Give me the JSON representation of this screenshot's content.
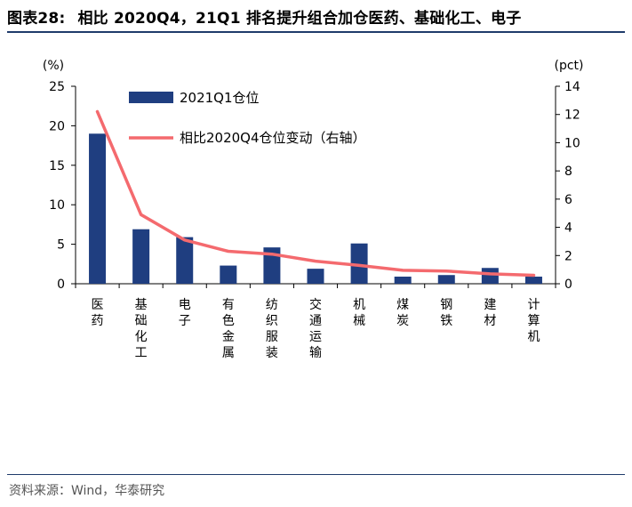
{
  "title": {
    "number": "图表28:",
    "text": "相比 2020Q4，21Q1 排名提升组合加仓医药、基础化工、电子"
  },
  "source": "资料来源：Wind，华泰研究",
  "colors": {
    "bar": "#1f3e80",
    "line": "#f46a6e",
    "rule": "#1f3b6b"
  },
  "chart_data": {
    "type": "bar",
    "categories": [
      "医药",
      "基础化工",
      "电子",
      "有色金属",
      "纺织服装",
      "交通运输",
      "机械",
      "煤炭",
      "钢铁",
      "建材",
      "计算机"
    ],
    "series": [
      {
        "name": "2021Q1仓位",
        "type": "bar",
        "axis": "left",
        "values": [
          19.0,
          6.9,
          5.9,
          2.3,
          4.6,
          1.9,
          5.1,
          0.9,
          1.1,
          2.0,
          0.9
        ]
      },
      {
        "name": "相比2020Q4仓位变动（右轴）",
        "type": "line",
        "axis": "right",
        "values": [
          12.2,
          4.9,
          3.1,
          2.3,
          2.1,
          1.6,
          1.3,
          0.95,
          0.9,
          0.7,
          0.6
        ]
      }
    ],
    "y_left": {
      "unit": "(%)",
      "min": 0,
      "max": 25,
      "ticks": [
        0,
        5,
        10,
        15,
        20,
        25
      ]
    },
    "y_right": {
      "unit": "(pct)",
      "min": 0,
      "max": 14,
      "ticks": [
        0,
        2,
        4,
        6,
        8,
        10,
        12,
        14
      ]
    },
    "legend_position": "top-left",
    "grid": false
  }
}
